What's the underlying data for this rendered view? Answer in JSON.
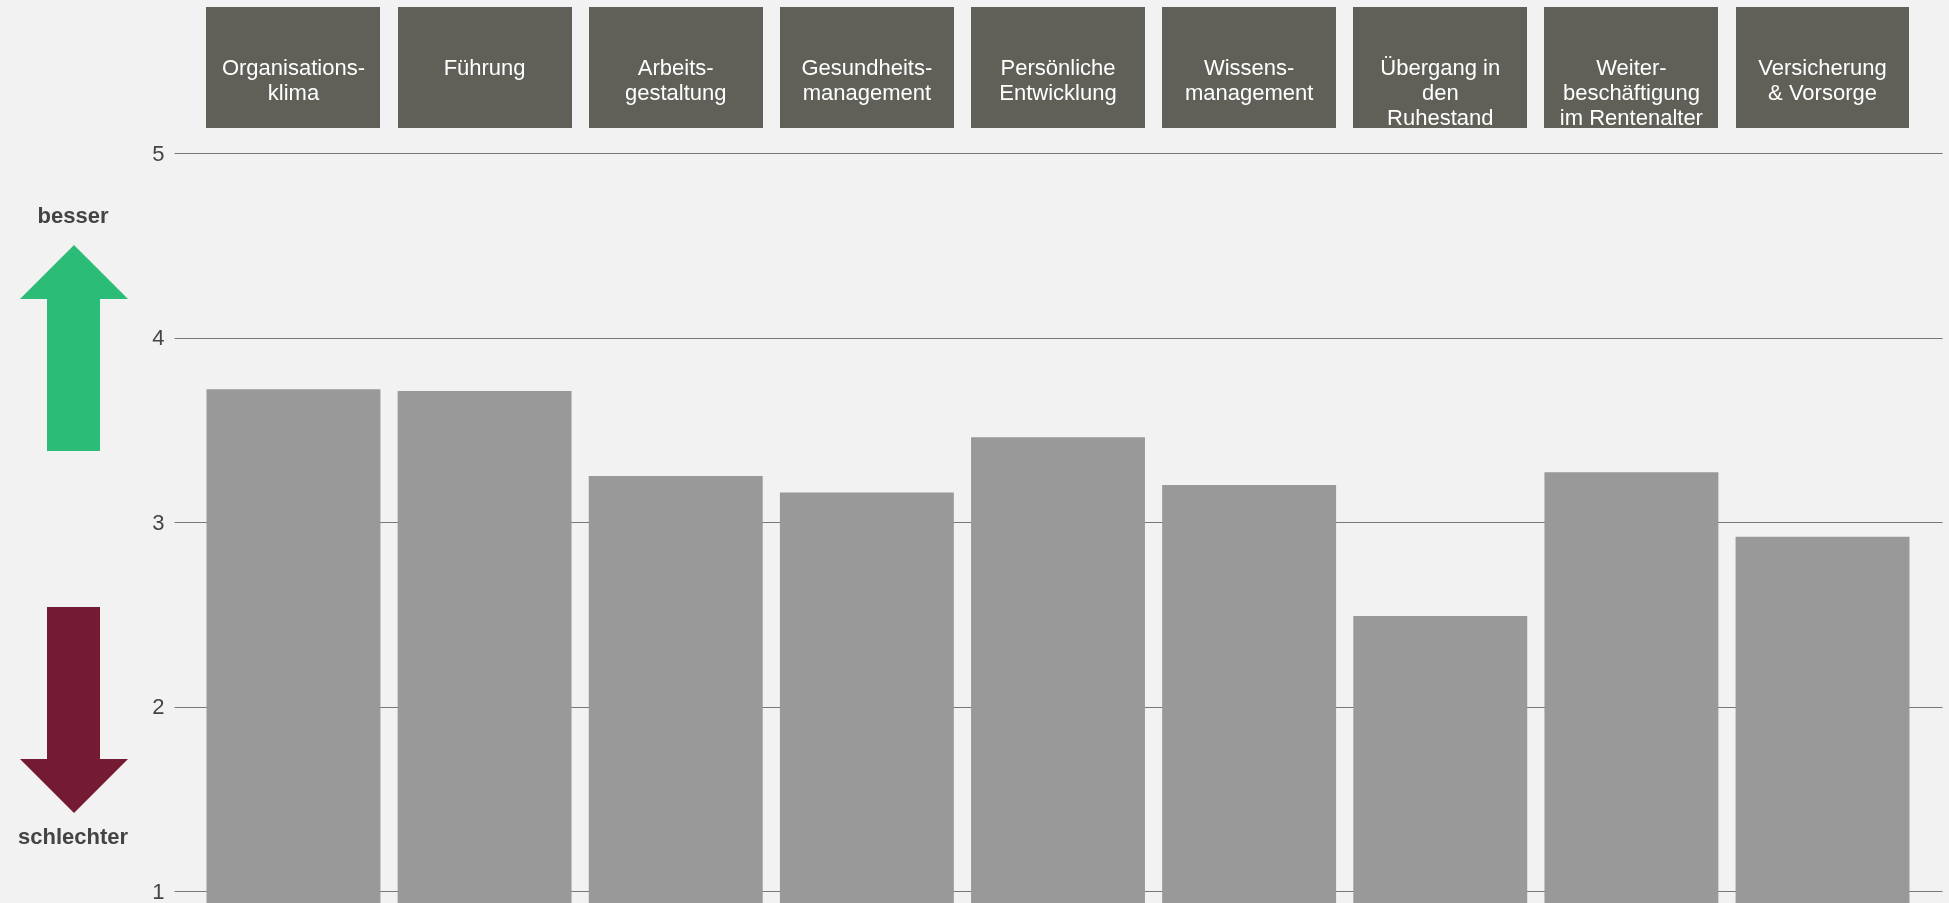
{
  "chart_data": {
    "type": "bar",
    "categories": [
      "Organisations-\nklima",
      "Führung",
      "Arbeits-\ngestaltung",
      "Gesundheits-\nmanagement",
      "Persönliche\nEntwicklung",
      "Wissens-\nmanagement",
      "Übergang in\nden\nRuhestand",
      "Weiter-\nbeschäftigung\nim Rentenalter",
      "Versicherung\n& Vorsorge"
    ],
    "values": [
      3.72,
      3.71,
      3.25,
      3.16,
      3.46,
      3.2,
      2.49,
      3.27,
      2.92
    ],
    "color": "#999999",
    "ylim": [
      1,
      5
    ],
    "yticks": [
      1,
      2,
      3,
      4,
      5
    ],
    "grid": "y",
    "annotations": [
      "besser",
      "schlechter"
    ]
  }
}
